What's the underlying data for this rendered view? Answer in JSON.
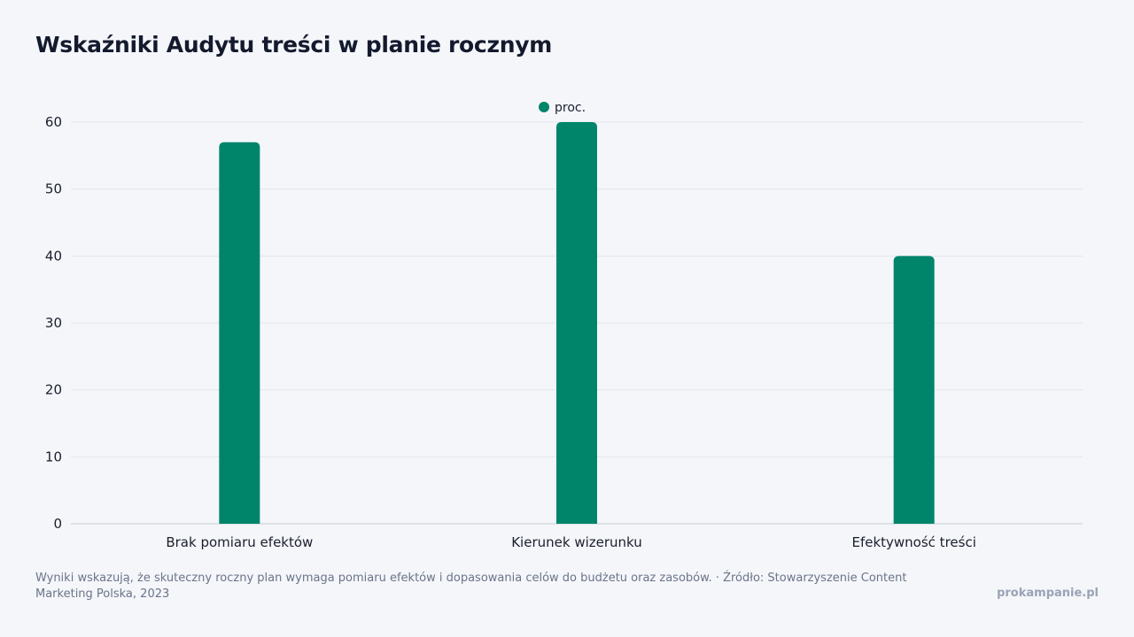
{
  "title": "Wskaźniki Audytu treści w planie rocznym",
  "footer": {
    "note": "Wyniki wskazują, że skuteczny roczny plan wymaga pomiaru efektów i dopasowania celów do budżetu oraz zasobów. · Źródło: Stowarzyszenie Content Marketing Polska, 2023",
    "brand": "prokampanie.pl"
  },
  "colors": {
    "bar": "#00856a",
    "grid": "#e3e6ec",
    "axis": "#c9cdd6",
    "tick_text": "#1b1f2c"
  },
  "chart_data": {
    "type": "bar",
    "title": "Wskaźniki Audytu treści w planie rocznym",
    "xlabel": "",
    "ylabel": "",
    "categories": [
      "Brak pomiaru efektów",
      "Kierunek wizerunku",
      "Efektywność treści"
    ],
    "series": [
      {
        "name": "proc.",
        "values": [
          57,
          60,
          40
        ]
      }
    ],
    "ylim": [
      0,
      60
    ],
    "yticks": [
      0,
      10,
      20,
      30,
      40,
      50,
      60
    ],
    "grid": true,
    "legend": "top-center"
  }
}
